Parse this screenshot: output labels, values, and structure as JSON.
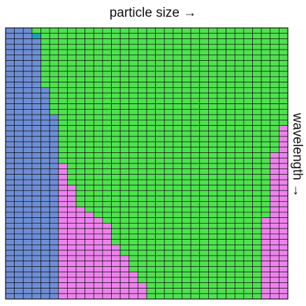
{
  "figure": {
    "title": "particle size →",
    "side_label": "wavelength →"
  },
  "legend_colors": {
    "blue_region": "#6d8ed6",
    "green_region": "#4ee34e",
    "pink_region": "#ee82ee",
    "teal_cell": "#1f9fb8",
    "cell_border": "#111111"
  },
  "grid": {
    "columns": 32,
    "rows": 50,
    "blue_extent_by_row": [
      3,
      3,
      4,
      4,
      4,
      4,
      4,
      4,
      4,
      4,
      4,
      5,
      5,
      5,
      5,
      5,
      6,
      6,
      6,
      6,
      6,
      6,
      6,
      6,
      6,
      6,
      6,
      6,
      6,
      6,
      6,
      6,
      6,
      6,
      6,
      6,
      6,
      6,
      6,
      6,
      6,
      6,
      6,
      6,
      6,
      6,
      6,
      6,
      6,
      6
    ],
    "pink_end_by_row": [
      3,
      3,
      4,
      4,
      4,
      4,
      4,
      4,
      4,
      4,
      4,
      5,
      5,
      5,
      5,
      5,
      6,
      6,
      6,
      6,
      6,
      6,
      6,
      6,
      6,
      7,
      7,
      7,
      7,
      8,
      8,
      8,
      8,
      9,
      10,
      11,
      12,
      12,
      12,
      12,
      13,
      13,
      14,
      14,
      14,
      15,
      15,
      16,
      16,
      16
    ],
    "right_pink_start_by_row": [
      32,
      32,
      32,
      32,
      32,
      32,
      32,
      32,
      32,
      32,
      32,
      32,
      32,
      32,
      32,
      32,
      32,
      32,
      31,
      31,
      31,
      31,
      31,
      30,
      30,
      30,
      30,
      30,
      30,
      30,
      30,
      30,
      30,
      30,
      30,
      29,
      29,
      29,
      29,
      29,
      29,
      29,
      29,
      29,
      29,
      29,
      29,
      29,
      29,
      29
    ],
    "teal_cells": [
      [
        1,
        3
      ]
    ]
  }
}
